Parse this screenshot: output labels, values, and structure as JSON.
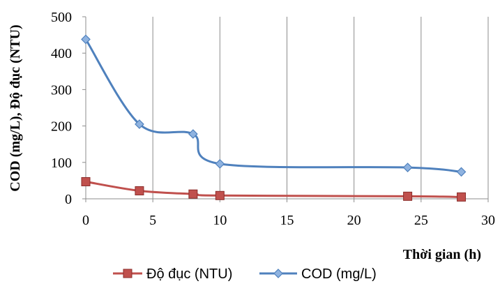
{
  "chart_data": {
    "type": "line",
    "xlabel": "Thời gian (h)",
    "ylabel": "COD (mg/L), Độ đục (NTU)",
    "xlim": [
      0,
      30
    ],
    "ylim": [
      0,
      500
    ],
    "xticks": [
      0,
      5,
      10,
      15,
      20,
      25,
      30
    ],
    "yticks": [
      0,
      100,
      200,
      300,
      400,
      500
    ],
    "grid": "vertical",
    "smooth": true,
    "legend_position": "bottom",
    "series": [
      {
        "name": "Độ đục (NTU)",
        "color": "#c0504d",
        "marker": "square",
        "x": [
          0,
          4,
          8,
          10,
          24,
          28
        ],
        "y": [
          47,
          22,
          13,
          9,
          7,
          5
        ]
      },
      {
        "name": "COD (mg/L)",
        "color": "#4f81bd",
        "marker": "diamond",
        "x": [
          0,
          4,
          8,
          10,
          24,
          28
        ],
        "y": [
          438,
          205,
          178,
          96,
          86,
          74
        ]
      }
    ]
  }
}
